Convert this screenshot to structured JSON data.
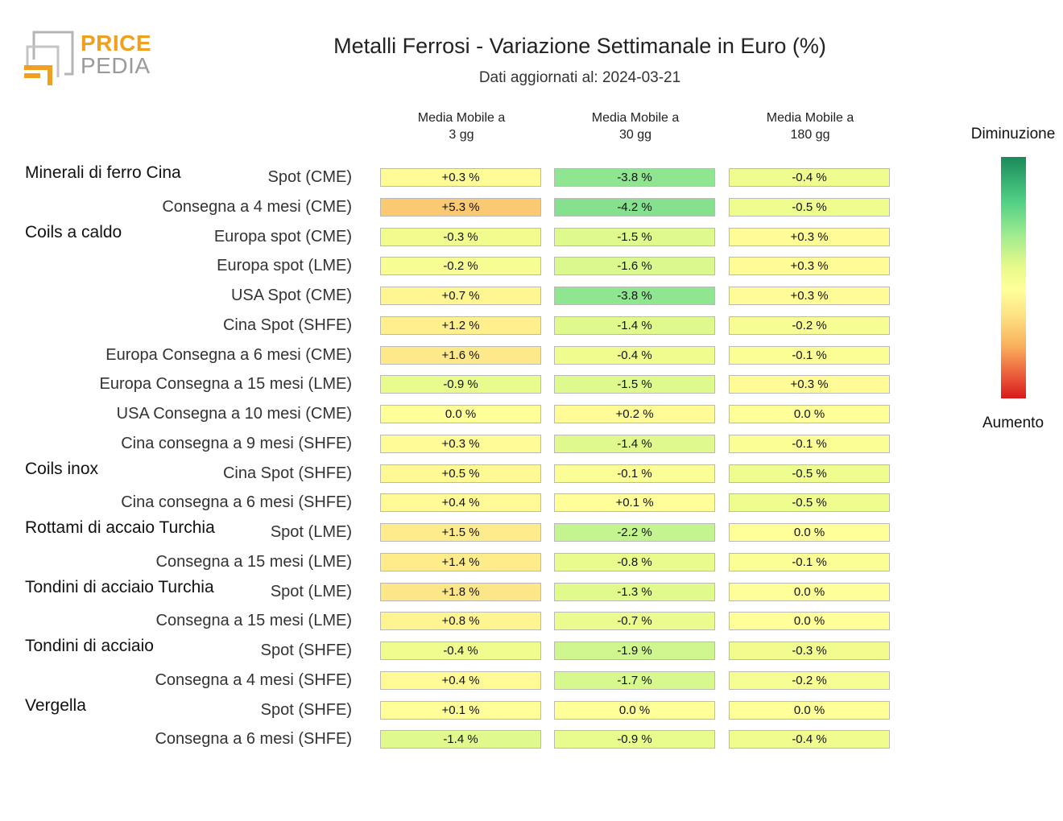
{
  "logo": {
    "line1": "PRICE",
    "line2": "PEDIA"
  },
  "title": "Metalli Ferrosi - Variazione Settimanale in Euro (%)",
  "subtitle": "Dati aggiornati al: 2024-03-21",
  "legend": {
    "top": "Diminuzione",
    "bottom": "Aumento"
  },
  "colors": {
    "logo_orange": "#f0a01e",
    "logo_gray": "#9a9a9a",
    "scale_green": "#1b8a5a",
    "scale_yellow": "#ffff99",
    "scale_red": "#d7191c"
  },
  "chart_data": {
    "type": "heatmap",
    "title": "Metalli Ferrosi - Variazione Settimanale in Euro (%)",
    "columns": [
      "Media Mobile a\n3 gg",
      "Media Mobile a\n30 gg",
      "Media Mobile a\n180 gg"
    ],
    "groups": [
      {
        "name": "Minerali di ferro Cina",
        "rows": [
          {
            "label": "Spot (CME)",
            "values": [
              "+0.3 %",
              "-3.8 %",
              "-0.4 %"
            ]
          },
          {
            "label": "Consegna a 4 mesi (CME)",
            "values": [
              "+5.3 %",
              "-4.2 %",
              "-0.5 %"
            ]
          }
        ]
      },
      {
        "name": "Coils a caldo",
        "rows": [
          {
            "label": "Europa spot (CME)",
            "values": [
              "-0.3 %",
              "-1.5 %",
              "+0.3 %"
            ]
          },
          {
            "label": "Europa spot (LME)",
            "values": [
              "-0.2 %",
              "-1.6 %",
              "+0.3 %"
            ]
          },
          {
            "label": "USA Spot (CME)",
            "values": [
              "+0.7 %",
              "-3.8 %",
              "+0.3 %"
            ]
          },
          {
            "label": "Cina Spot (SHFE)",
            "values": [
              "+1.2 %",
              "-1.4 %",
              "-0.2 %"
            ]
          },
          {
            "label": "Europa Consegna a 6 mesi (CME)",
            "values": [
              "+1.6 %",
              "-0.4 %",
              "-0.1 %"
            ]
          },
          {
            "label": "Europa Consegna a 15 mesi (LME)",
            "values": [
              "-0.9 %",
              "-1.5 %",
              "+0.3 %"
            ]
          },
          {
            "label": "USA Consegna a 10 mesi (CME)",
            "values": [
              "0.0 %",
              "+0.2 %",
              "0.0 %"
            ]
          },
          {
            "label": "Cina consegna a 9 mesi (SHFE)",
            "values": [
              "+0.3 %",
              "-1.4 %",
              "-0.1 %"
            ]
          }
        ]
      },
      {
        "name": "Coils inox",
        "rows": [
          {
            "label": "Cina Spot (SHFE)",
            "values": [
              "+0.5 %",
              "-0.1 %",
              "-0.5 %"
            ]
          },
          {
            "label": "Cina consegna a 6 mesi (SHFE)",
            "values": [
              "+0.4 %",
              "+0.1 %",
              "-0.5 %"
            ]
          }
        ]
      },
      {
        "name": "Rottami di accaio Turchia",
        "rows": [
          {
            "label": "Spot (LME)",
            "values": [
              "+1.5 %",
              "-2.2 %",
              "0.0 %"
            ]
          },
          {
            "label": "Consegna a 15 mesi (LME)",
            "values": [
              "+1.4 %",
              "-0.8 %",
              "-0.1 %"
            ]
          }
        ]
      },
      {
        "name": "Tondini di acciaio Turchia",
        "rows": [
          {
            "label": "Spot (LME)",
            "values": [
              "+1.8 %",
              "-1.3 %",
              "0.0 %"
            ]
          },
          {
            "label": "Consegna a 15 mesi (LME)",
            "values": [
              "+0.8 %",
              "-0.7 %",
              "0.0 %"
            ]
          }
        ]
      },
      {
        "name": "Tondini di acciaio",
        "rows": [
          {
            "label": "Spot (SHFE)",
            "values": [
              "-0.4 %",
              "-1.9 %",
              "-0.3 %"
            ]
          },
          {
            "label": "Consegna a 4 mesi (SHFE)",
            "values": [
              "+0.4 %",
              "-1.7 %",
              "-0.2 %"
            ]
          }
        ]
      },
      {
        "name": "Vergella",
        "rows": [
          {
            "label": "Spot (SHFE)",
            "values": [
              "+0.1 %",
              "0.0 %",
              "0.0 %"
            ]
          },
          {
            "label": "Consegna a 6 mesi (SHFE)",
            "values": [
              "-1.4 %",
              "-0.9 %",
              "-0.4 %"
            ]
          }
        ]
      }
    ]
  }
}
